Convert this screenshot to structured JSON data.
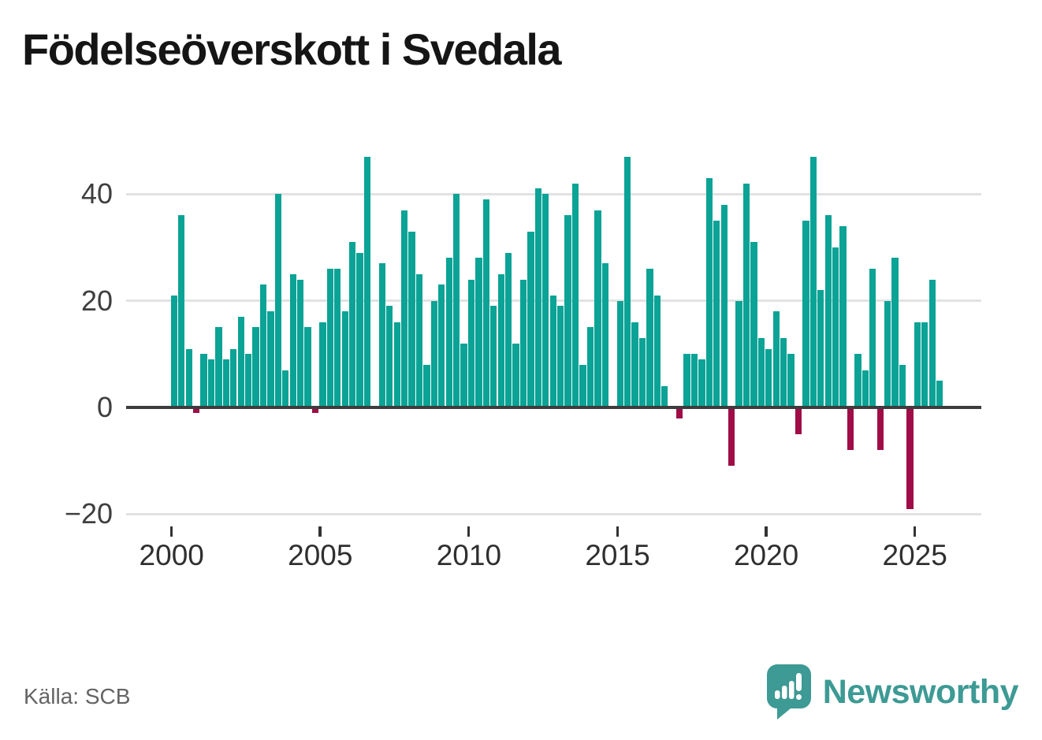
{
  "title": "Födelseöverskott i Svedala",
  "source_label": "Källa: SCB",
  "brand": {
    "name": "Newsworthy",
    "icon": "speech-bubble-bar-chart-exclamation"
  },
  "colors": {
    "positive_bar": "#0aa396",
    "negative_bar": "#a00c47",
    "zero_axis_line": "#3d3d3d",
    "gridline": "#e2e2e2",
    "axis_text": "#3f3f3f",
    "title_text": "#151515",
    "source_text": "#646464",
    "brand_teal": "#3d9a94"
  },
  "y_axis": {
    "tick_values": [
      40,
      20,
      0,
      -20
    ],
    "tick_labels": [
      "40",
      "20",
      "0",
      "−20"
    ]
  },
  "x_axis": {
    "tick_years": [
      2000,
      2005,
      2010,
      2015,
      2020,
      2025
    ],
    "tick_labels": [
      "2000",
      "2005",
      "2010",
      "2015",
      "2020",
      "2025"
    ]
  },
  "chart_data": {
    "type": "bar",
    "title": "Födelseöverskott i Svedala",
    "xlabel": "",
    "ylabel": "",
    "frequency": "quarterly",
    "start_period": "2000-Q1",
    "end_period": "2025-Q4",
    "ylim": [
      -22,
      50
    ],
    "grid": "horizontal",
    "legend": "none",
    "positive_color": "#0aa396",
    "negative_color": "#a00c47",
    "values": [
      21,
      36,
      11,
      -1,
      10,
      9,
      15,
      9,
      11,
      17,
      10,
      15,
      23,
      18,
      40,
      7,
      25,
      24,
      15,
      -1,
      16,
      26,
      26,
      18,
      31,
      29,
      47,
      0,
      27,
      19,
      16,
      37,
      33,
      25,
      8,
      20,
      23,
      28,
      40,
      12,
      24,
      28,
      39,
      19,
      25,
      29,
      12,
      24,
      33,
      41,
      40,
      21,
      19,
      36,
      42,
      8,
      15,
      37,
      27,
      0,
      20,
      47,
      16,
      13,
      26,
      21,
      4,
      0,
      -2,
      10,
      10,
      9,
      43,
      35,
      38,
      -11,
      20,
      42,
      31,
      13,
      11,
      18,
      13,
      10,
      -5,
      35,
      47,
      22,
      36,
      30,
      34,
      -8,
      10,
      7,
      26,
      -8,
      20,
      28,
      8,
      -19,
      16,
      16,
      24,
      5
    ]
  }
}
